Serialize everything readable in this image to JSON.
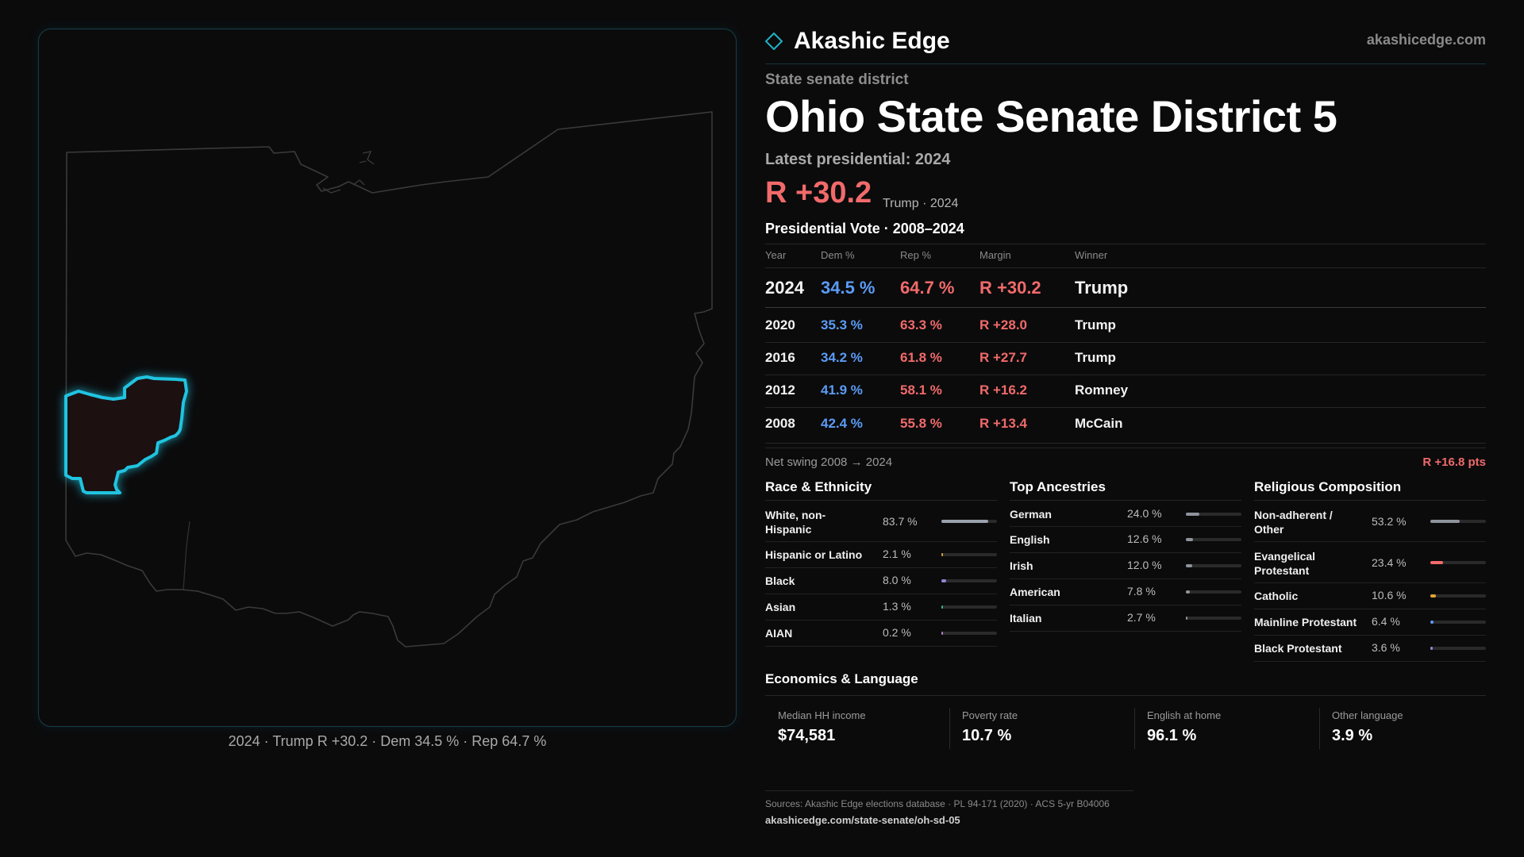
{
  "brand": {
    "name": "Akashic Edge",
    "domain": "akashicedge.com",
    "accent": "#1fb3c6"
  },
  "header": {
    "eyebrow": "State senate district",
    "title": "Ohio State Senate District 5",
    "latest_label": "Latest presidential: 2024",
    "margin": "R +30.2",
    "margin_sub": "Trump · 2024"
  },
  "map": {
    "caption": "2024 · Trump R +30.2 · Dem 34.5 % · Rep 64.7 %",
    "highlight_color": "#20c4e0"
  },
  "presidential": {
    "title": "Presidential Vote · 2008–2024",
    "headers": [
      "Year",
      "Dem %",
      "Rep %",
      "Margin",
      "Winner"
    ],
    "rows": [
      {
        "year": "2024",
        "dem": "34.5 %",
        "rep": "64.7 %",
        "margin": "R +30.2",
        "winner": "Trump"
      },
      {
        "year": "2020",
        "dem": "35.3 %",
        "rep": "63.3 %",
        "margin": "R +28.0",
        "winner": "Trump"
      },
      {
        "year": "2016",
        "dem": "34.2 %",
        "rep": "61.8 %",
        "margin": "R +27.7",
        "winner": "Trump"
      },
      {
        "year": "2012",
        "dem": "41.9 %",
        "rep": "58.1 %",
        "margin": "R +16.2",
        "winner": "Romney"
      },
      {
        "year": "2008",
        "dem": "42.4 %",
        "rep": "55.8 %",
        "margin": "R +13.4",
        "winner": "McCain"
      }
    ],
    "swing_label": "Net swing 2008 → 2024",
    "swing_value": "R +16.8 pts"
  },
  "race": {
    "title": "Race & Ethnicity",
    "items": [
      {
        "label": "White, non-Hispanic",
        "value": "83.7 %",
        "share": 0.837,
        "color": "#9aa3ad"
      },
      {
        "label": "Hispanic or Latino",
        "value": "2.1 %",
        "share": 0.021,
        "color": "#d4a23a"
      },
      {
        "label": "Black",
        "value": "8.0 %",
        "share": 0.08,
        "color": "#8f86d9"
      },
      {
        "label": "Asian",
        "value": "1.3 %",
        "share": 0.013,
        "color": "#3fb27f"
      },
      {
        "label": "AIAN",
        "value": "0.2 %",
        "share": 0.002,
        "color": "#b07cc6"
      }
    ]
  },
  "ancestries": {
    "title": "Top Ancestries",
    "items": [
      {
        "label": "German",
        "value": "24.0 %",
        "share": 0.24,
        "color": "#8e949b"
      },
      {
        "label": "English",
        "value": "12.6 %",
        "share": 0.126,
        "color": "#8e949b"
      },
      {
        "label": "Irish",
        "value": "12.0 %",
        "share": 0.12,
        "color": "#8e949b"
      },
      {
        "label": "American",
        "value": "7.8 %",
        "share": 0.078,
        "color": "#8e949b"
      },
      {
        "label": "Italian",
        "value": "2.7 %",
        "share": 0.027,
        "color": "#8e949b"
      }
    ]
  },
  "religion": {
    "title": "Religious Composition",
    "items": [
      {
        "label": "Non-adherent / Other",
        "value": "53.2 %",
        "share": 0.532,
        "color": "#8e949b"
      },
      {
        "label": "Evangelical Protestant",
        "value": "23.4 %",
        "share": 0.234,
        "color": "#f26a6a"
      },
      {
        "label": "Catholic",
        "value": "10.6 %",
        "share": 0.106,
        "color": "#e0a42f"
      },
      {
        "label": "Mainline Protestant",
        "value": "6.4 %",
        "share": 0.064,
        "color": "#5b9cf6"
      },
      {
        "label": "Black Protestant",
        "value": "3.6 %",
        "share": 0.036,
        "color": "#8f86d9"
      }
    ]
  },
  "economics": {
    "title": "Economics & Language",
    "cards": [
      {
        "label": "Median HH income",
        "value": "$74,581"
      },
      {
        "label": "Poverty rate",
        "value": "10.7 %"
      },
      {
        "label": "English at home",
        "value": "96.1 %"
      },
      {
        "label": "Other language",
        "value": "3.9 %"
      }
    ]
  },
  "footer": {
    "sources": "Sources: Akashic Edge elections database · PL 94-171 (2020) · ACS 5-yr B04006",
    "url": "akashicedge.com/state-senate/oh-sd-05"
  }
}
